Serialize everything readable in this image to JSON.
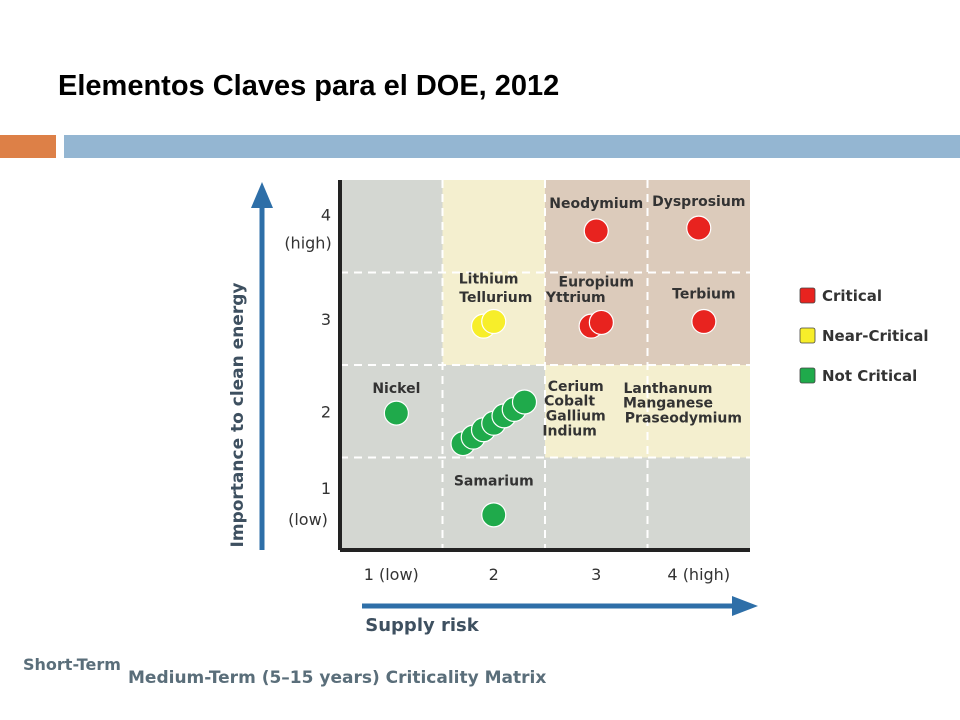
{
  "slide": {
    "title": "Elementos Claves para el DOE, 2012"
  },
  "captions": {
    "short_term": "Short-Term",
    "medium_term": "Medium-Term (5–15 years) Criticality Matrix"
  },
  "colors": {
    "critical": "#e8231f",
    "near_critical": "#f7ee2a",
    "not_critical": "#1faa4b",
    "zone_critical": "#dccbbb",
    "zone_near": "#f4efcf",
    "zone_low": "#d4d7d2",
    "axis_arrow": "#2e6fa8"
  },
  "chart_data": {
    "type": "scatter",
    "title": "",
    "xlabel": "Supply risk",
    "ylabel": "Importance to clean energy",
    "xlim": [
      0.5,
      4.5
    ],
    "ylim": [
      0.5,
      4.5
    ],
    "x_ticks": [
      {
        "value": 1,
        "label": "1 (low)"
      },
      {
        "value": 2,
        "label": "2"
      },
      {
        "value": 3,
        "label": "3"
      },
      {
        "value": 4,
        "label": "4 (high)"
      }
    ],
    "y_ticks": [
      {
        "value": 1,
        "label": "1",
        "sublabel": "(low)"
      },
      {
        "value": 2,
        "label": "2",
        "sublabel": ""
      },
      {
        "value": 3,
        "label": "3",
        "sublabel": ""
      },
      {
        "value": 4,
        "label": "4",
        "sublabel": "(high)"
      }
    ],
    "grid": true,
    "legend": {
      "placement": "right",
      "entries": [
        {
          "label": "Critical",
          "category": "critical"
        },
        {
          "label": "Near-Critical",
          "category": "near_critical"
        },
        {
          "label": "Not Critical",
          "category": "not_critical"
        }
      ]
    },
    "points": [
      {
        "x": 3.0,
        "y": 3.95,
        "category": "critical"
      },
      {
        "x": 4.0,
        "y": 3.98,
        "category": "critical"
      },
      {
        "x": 2.95,
        "y": 2.92,
        "category": "critical"
      },
      {
        "x": 3.05,
        "y": 2.96,
        "category": "critical"
      },
      {
        "x": 4.05,
        "y": 2.97,
        "category": "critical"
      },
      {
        "x": 1.9,
        "y": 2.92,
        "category": "near_critical"
      },
      {
        "x": 2.0,
        "y": 2.97,
        "category": "near_critical"
      },
      {
        "x": 1.05,
        "y": 1.98,
        "category": "not_critical"
      },
      {
        "x": 1.7,
        "y": 1.65,
        "category": "not_critical"
      },
      {
        "x": 1.8,
        "y": 1.72,
        "category": "not_critical"
      },
      {
        "x": 1.9,
        "y": 1.8,
        "category": "not_critical"
      },
      {
        "x": 2.0,
        "y": 1.87,
        "category": "not_critical"
      },
      {
        "x": 2.1,
        "y": 1.95,
        "category": "not_critical"
      },
      {
        "x": 2.2,
        "y": 2.02,
        "category": "not_critical"
      },
      {
        "x": 2.3,
        "y": 2.1,
        "category": "not_critical"
      },
      {
        "x": 2.0,
        "y": 0.88,
        "category": "not_critical"
      }
    ],
    "annotations": [
      {
        "text": "Neodymium",
        "x": 3.0,
        "y": 4.2
      },
      {
        "text": "Dysprosium",
        "x": 4.0,
        "y": 4.22
      },
      {
        "text": "Europium",
        "x": 3.0,
        "y": 3.35
      },
      {
        "text": "Yttrium",
        "x": 2.8,
        "y": 3.18
      },
      {
        "text": "Terbium",
        "x": 4.05,
        "y": 3.22
      },
      {
        "text": "Lithium",
        "x": 1.95,
        "y": 3.38
      },
      {
        "text": "Tellurium",
        "x": 2.02,
        "y": 3.18
      },
      {
        "text": "Nickel",
        "x": 1.05,
        "y": 2.2
      },
      {
        "text": "Cerium",
        "x": 2.8,
        "y": 2.22
      },
      {
        "text": "Cobalt",
        "x": 2.74,
        "y": 2.06
      },
      {
        "text": "Gallium",
        "x": 2.8,
        "y": 1.9
      },
      {
        "text": "Indium",
        "x": 2.74,
        "y": 1.74
      },
      {
        "text": "Lanthanum",
        "x": 3.7,
        "y": 2.2
      },
      {
        "text": "Manganese",
        "x": 3.7,
        "y": 2.04
      },
      {
        "text": "Praseodymium",
        "x": 3.85,
        "y": 1.88
      },
      {
        "text": "Samarium",
        "x": 2.0,
        "y": 1.2
      }
    ]
  }
}
